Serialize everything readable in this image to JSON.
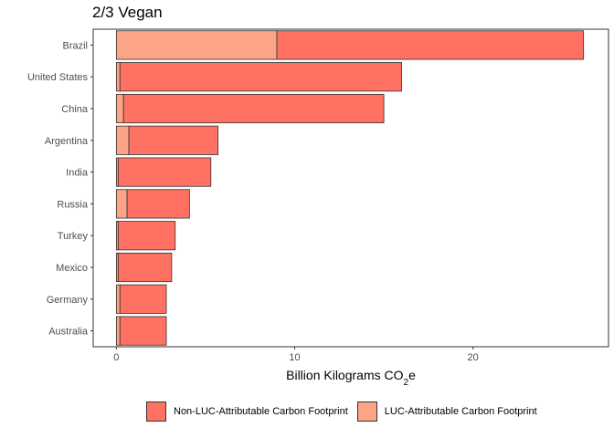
{
  "chart_data": {
    "type": "bar",
    "orientation": "horizontal",
    "stacked": true,
    "title": "2/3 Vegan",
    "xlabel_main": "Billion Kilograms CO",
    "xlabel_sub": "2",
    "xlabel_tail": "e",
    "ylabel": "",
    "xlim": [
      -1.3,
      27.6
    ],
    "xticks": [
      0,
      10,
      20
    ],
    "grid": false,
    "legend_position": "bottom",
    "categories": [
      "Brazil",
      "United States",
      "China",
      "Argentina",
      "India",
      "Russia",
      "Turkey",
      "Mexico",
      "Germany",
      "Australia"
    ],
    "series": [
      {
        "name": "Non-LUC-Attributable Carbon Footprint",
        "color": "#FF7163",
        "values": [
          17.2,
          15.8,
          14.6,
          5.0,
          5.2,
          3.5,
          3.2,
          3.0,
          2.6,
          2.6
        ]
      },
      {
        "name": "LUC-Attributable Carbon Footprint",
        "color": "#FCA486",
        "values": [
          9.0,
          0.2,
          0.4,
          0.7,
          0.1,
          0.6,
          0.1,
          0.1,
          0.2,
          0.2
        ]
      }
    ],
    "legend": {
      "non_luc": "Non-LUC-Attributable Carbon Footprint",
      "luc": "LUC-Attributable Carbon Footprint"
    }
  }
}
